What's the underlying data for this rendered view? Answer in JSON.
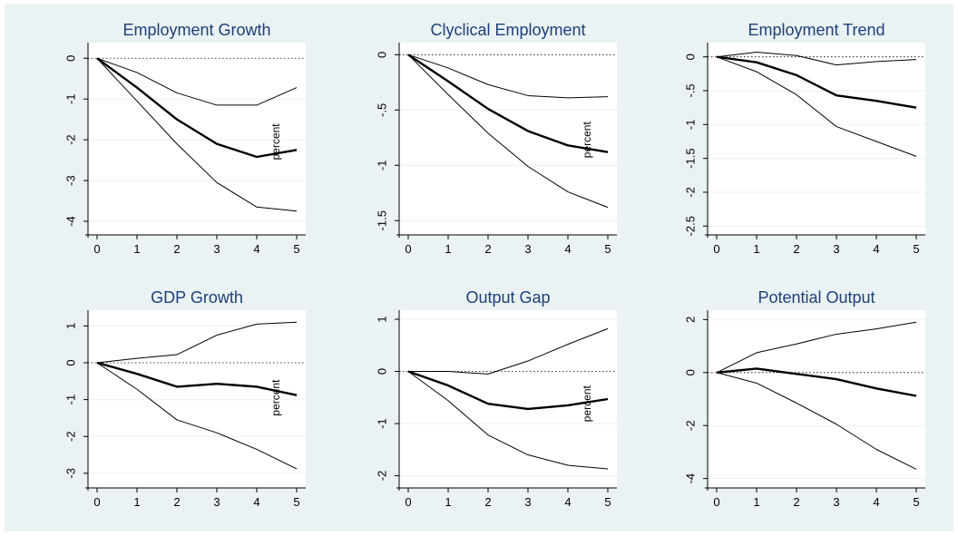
{
  "colors": {
    "background": "#eaf2f3",
    "plot_area": "#ffffff",
    "title": "#1e3f78",
    "line": "#000000"
  },
  "chart_data": [
    {
      "type": "line",
      "title": "Employment Growth",
      "x": [
        0,
        1,
        2,
        3,
        4,
        5
      ],
      "xticks": [
        "0",
        "1",
        "2",
        "3",
        "4",
        "5"
      ],
      "yticks": [
        0,
        -1,
        -2,
        -3,
        -4
      ],
      "ytick_labels": [
        "0",
        "-1",
        "-2",
        "-3",
        "-4"
      ],
      "ylim": [
        -4.2,
        0.25
      ],
      "reference_line": 0,
      "annotation": "percent",
      "annotation_x": 4.5,
      "annotation_y": -2.05,
      "series": [
        {
          "role": "upper",
          "values": [
            0,
            -0.35,
            -0.85,
            -1.15,
            -1.15,
            -0.72
          ]
        },
        {
          "role": "point",
          "values": [
            0,
            -0.72,
            -1.5,
            -2.1,
            -2.42,
            -2.25
          ]
        },
        {
          "role": "lower",
          "values": [
            0,
            -1.05,
            -2.1,
            -3.05,
            -3.65,
            -3.75
          ]
        }
      ]
    },
    {
      "type": "line",
      "title": "Clyclical Employment",
      "x": [
        0,
        1,
        2,
        3,
        4,
        5
      ],
      "xticks": [
        "0",
        "1",
        "2",
        "3",
        "4",
        "5"
      ],
      "yticks": [
        0,
        -0.5,
        -1,
        -1.5
      ],
      "ytick_labels": [
        "0",
        "-.5",
        "-1",
        "-1.5"
      ],
      "ylim": [
        -1.58,
        0.06
      ],
      "reference_line": 0,
      "annotation": "percent",
      "annotation_x": 4.5,
      "annotation_y": -0.77,
      "series": [
        {
          "role": "upper",
          "values": [
            0,
            -0.12,
            -0.27,
            -0.37,
            -0.39,
            -0.38
          ]
        },
        {
          "role": "point",
          "values": [
            0,
            -0.24,
            -0.49,
            -0.69,
            -0.82,
            -0.88
          ]
        },
        {
          "role": "lower",
          "values": [
            0,
            -0.36,
            -0.71,
            -1.01,
            -1.24,
            -1.38
          ]
        }
      ]
    },
    {
      "type": "line",
      "title": "Employment Trend",
      "x": [
        0,
        1,
        2,
        3,
        4,
        5
      ],
      "xticks": [
        "0",
        "1",
        "2",
        "3",
        "4",
        "5"
      ],
      "yticks": [
        0,
        -0.5,
        -1,
        -1.5,
        -2,
        -2.5
      ],
      "ytick_labels": [
        "0",
        "-.5",
        "-1",
        "-1.5",
        "-2",
        "-2.5"
      ],
      "ylim": [
        -2.55,
        0.13
      ],
      "reference_line": 0,
      "series": [
        {
          "role": "upper",
          "values": [
            0,
            0.07,
            0.02,
            -0.12,
            -0.07,
            -0.04
          ]
        },
        {
          "role": "point",
          "values": [
            0,
            -0.08,
            -0.27,
            -0.57,
            -0.65,
            -0.75
          ]
        },
        {
          "role": "lower",
          "values": [
            0,
            -0.22,
            -0.56,
            -1.03,
            -1.25,
            -1.47
          ]
        }
      ]
    },
    {
      "type": "line",
      "title": "GDP Growth",
      "x": [
        0,
        1,
        2,
        3,
        4,
        5
      ],
      "xticks": [
        "0",
        "1",
        "2",
        "3",
        "4",
        "5"
      ],
      "yticks": [
        1,
        0,
        -1,
        -2,
        -3
      ],
      "ytick_labels": [
        "1",
        "0",
        "-1",
        "-2",
        "-3"
      ],
      "ylim": [
        -3.25,
        1.28
      ],
      "reference_line": 0,
      "annotation": "percent",
      "annotation_x": 4.5,
      "annotation_y": -0.95,
      "series": [
        {
          "role": "upper",
          "values": [
            0,
            0.12,
            0.22,
            0.75,
            1.05,
            1.1
          ]
        },
        {
          "role": "point",
          "values": [
            0,
            -0.3,
            -0.65,
            -0.57,
            -0.65,
            -0.88
          ]
        },
        {
          "role": "lower",
          "values": [
            0,
            -0.72,
            -1.55,
            -1.9,
            -2.35,
            -2.88
          ]
        }
      ]
    },
    {
      "type": "line",
      "title": "Output Gap",
      "x": [
        0,
        1,
        2,
        3,
        4,
        5
      ],
      "xticks": [
        "0",
        "1",
        "2",
        "3",
        "4",
        "5"
      ],
      "yticks": [
        1,
        0,
        -1,
        -2
      ],
      "ytick_labels": [
        "1",
        "0",
        "-1",
        "-2"
      ],
      "ylim": [
        -2.13,
        1.07
      ],
      "reference_line": 0,
      "annotation": "percent",
      "annotation_x": 4.5,
      "annotation_y": -0.62,
      "series": [
        {
          "role": "upper",
          "values": [
            0,
            0,
            -0.05,
            0.2,
            0.52,
            0.82
          ]
        },
        {
          "role": "point",
          "values": [
            0,
            -0.27,
            -0.62,
            -0.72,
            -0.65,
            -0.53
          ]
        },
        {
          "role": "lower",
          "values": [
            0,
            -0.56,
            -1.22,
            -1.6,
            -1.8,
            -1.87
          ]
        }
      ]
    },
    {
      "type": "line",
      "title": "Potential Output",
      "x": [
        0,
        1,
        2,
        3,
        4,
        5
      ],
      "xticks": [
        "0",
        "1",
        "2",
        "3",
        "4",
        "5"
      ],
      "yticks": [
        2,
        0,
        -2,
        -4
      ],
      "ytick_labels": [
        "2",
        "0",
        "-2",
        "-4"
      ],
      "ylim": [
        -4.15,
        2.15
      ],
      "reference_line": 0,
      "series": [
        {
          "role": "upper",
          "values": [
            0,
            0.75,
            1.08,
            1.45,
            1.65,
            1.9
          ]
        },
        {
          "role": "point",
          "values": [
            0,
            0.15,
            -0.05,
            -0.25,
            -0.6,
            -0.88
          ]
        },
        {
          "role": "lower",
          "values": [
            0,
            -0.4,
            -1.15,
            -1.95,
            -2.9,
            -3.65
          ]
        }
      ]
    }
  ]
}
